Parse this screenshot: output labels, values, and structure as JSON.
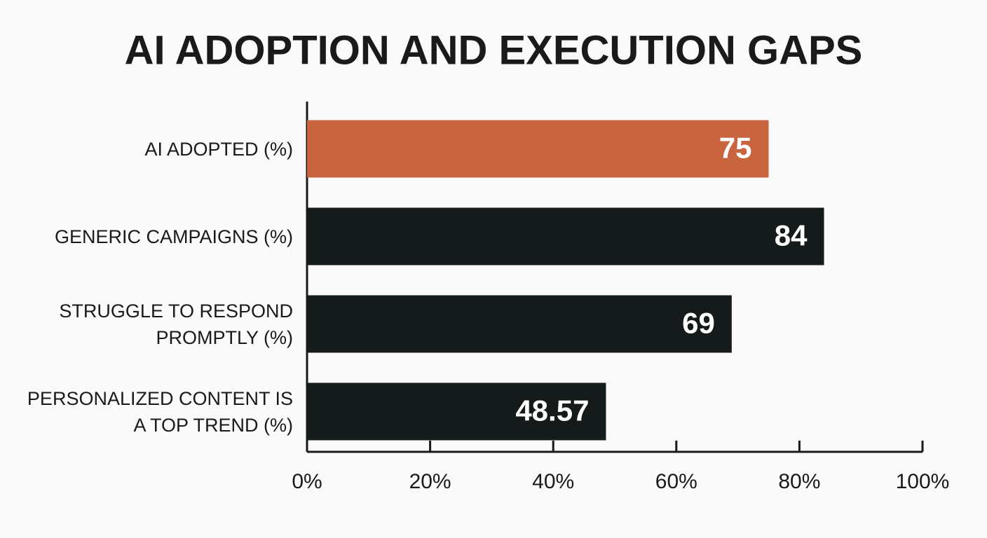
{
  "chart_data": {
    "type": "hbar",
    "title": "AI ADOPTION AND EXECUTION GAPS",
    "categories": [
      "AI ADOPTED (%)",
      "GENERIC CAMPAIGNS (%)",
      "STRUGGLE TO RESPOND PROMPTLY (%)",
      "PERSONALIZED CONTENT IS A TOP TREND (%)"
    ],
    "values": [
      75,
      84,
      69,
      48.57
    ],
    "colors": [
      "#c8653f",
      "#151a1a",
      "#151a1a",
      "#151a1a"
    ],
    "xlim": [
      0,
      100
    ],
    "xticks": [
      {
        "value": 0,
        "label": "0%"
      },
      {
        "value": 20,
        "label": "20%"
      },
      {
        "value": 40,
        "label": "40%"
      },
      {
        "value": 60,
        "label": "60%"
      },
      {
        "value": 80,
        "label": "80%"
      },
      {
        "value": 100,
        "label": "100%"
      }
    ],
    "grid": false
  }
}
